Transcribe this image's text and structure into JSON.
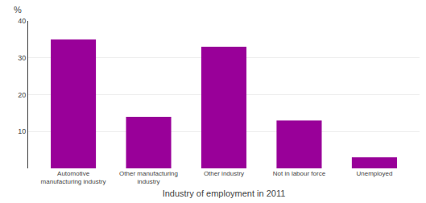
{
  "chart_data": {
    "type": "bar",
    "categories": [
      "Automotive\nmanufacturing industry",
      "Other manufacturing\nindustry",
      "Other industry",
      "Not in labour force",
      "Unemployed"
    ],
    "values": [
      35.0,
      14.0,
      33.0,
      13.0,
      3.0
    ],
    "color": "#990099",
    "xlabel": "Industry of employment in 2011",
    "ylabel": "%",
    "ylim": [
      0,
      40
    ],
    "yticks": [
      10,
      20,
      30,
      40
    ],
    "grid": true
  }
}
